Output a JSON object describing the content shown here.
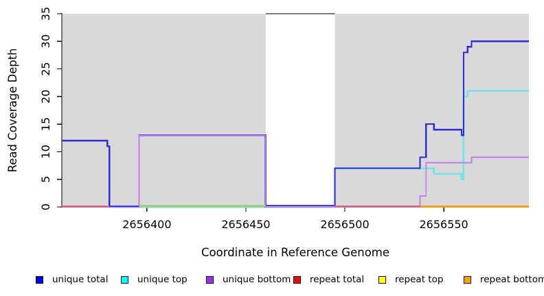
{
  "chart_data": {
    "type": "line",
    "subtype": "step-coverage-plot",
    "title": "",
    "xlabel": "Coordinate in Reference Genome",
    "ylabel": "Read Coverage Depth",
    "x_range": [
      2656357,
      2656593
    ],
    "y_range": [
      0,
      35
    ],
    "x_ticks": [
      2656400,
      2656450,
      2656500,
      2656550
    ],
    "y_ticks": [
      0,
      5,
      10,
      15,
      20,
      25,
      30,
      35
    ],
    "grid": "off",
    "legend_position": "bottom",
    "background_bands": [
      {
        "name": "covered-region-left",
        "from": 2656357,
        "to": 2656460,
        "color": "#D9D9D9"
      },
      {
        "name": "covered-region-right",
        "from": 2656495,
        "to": 2656593,
        "color": "#D9D9D9"
      }
    ],
    "gap_cap_line": {
      "from": 2656460,
      "to": 2656495,
      "y": 35,
      "color": "#7A7A7A"
    },
    "series": [
      {
        "name": "unique total",
        "legend_color": "#0000EE",
        "line_color": "#2B2BE0",
        "width": 2.2,
        "start_value": 12,
        "steps": [
          [
            2656380,
            11
          ],
          [
            2656381,
            0
          ],
          [
            2656396,
            13
          ],
          [
            2656460,
            0
          ],
          [
            2656495,
            7
          ],
          [
            2656538,
            9
          ],
          [
            2656541,
            15
          ],
          [
            2656545,
            14
          ],
          [
            2656559,
            13
          ],
          [
            2656560,
            28
          ],
          [
            2656562,
            29
          ],
          [
            2656564,
            30
          ]
        ]
      },
      {
        "name": "unique top",
        "legend_color": "#00FFFF",
        "line_color": "#6FE6EC",
        "width": 2.6,
        "start_value": 12,
        "steps": [
          [
            2656380,
            11
          ],
          [
            2656381,
            0
          ],
          [
            2656495,
            7
          ],
          [
            2656545,
            6
          ],
          [
            2656559,
            5
          ],
          [
            2656560,
            20
          ],
          [
            2656562,
            21
          ]
        ]
      },
      {
        "name": "unique bottom",
        "legend_color": "#9B30F0",
        "line_color": "#BD7DF2",
        "width": 1.8,
        "start_value": 0,
        "steps": [
          [
            2656396,
            13
          ],
          [
            2656460,
            0
          ],
          [
            2656538,
            2
          ],
          [
            2656541,
            8
          ],
          [
            2656564,
            9
          ]
        ]
      },
      {
        "name": "repeat total",
        "legend_color": "#FF0000",
        "line_color": "#E25B6E",
        "width": 1.5,
        "start_value": 0,
        "steps": []
      },
      {
        "name": "repeat top",
        "legend_color": "#FFFF00",
        "line_color": "#F5E642",
        "width": 1.5,
        "start_value": 0,
        "steps": []
      },
      {
        "name": "repeat bottom",
        "legend_color": "#FFA500",
        "line_color": "#FF9913",
        "width": 1.5,
        "start_value": 0,
        "steps": []
      }
    ],
    "baseline_segments": [
      {
        "from": 2656357,
        "to": 2656381,
        "color": "#E25B6E",
        "dy": 0
      },
      {
        "from": 2656381,
        "to": 2656396,
        "color": "#3A3AE8",
        "dy": 0
      },
      {
        "from": 2656396,
        "to": 2656460,
        "color": "#F2B24D",
        "dy": 0
      },
      {
        "from": 2656396,
        "to": 2656460,
        "color": "#86D986",
        "dy": -1
      },
      {
        "from": 2656460,
        "to": 2656495,
        "color": "#C9A0E8",
        "dy": 0
      },
      {
        "from": 2656460,
        "to": 2656495,
        "color": "#4A34E0",
        "dy": -1
      },
      {
        "from": 2656495,
        "to": 2656538,
        "color": "#E25B6E",
        "dy": 0
      },
      {
        "from": 2656538,
        "to": 2656593,
        "color": "#FF9913",
        "dy": 0
      }
    ]
  }
}
